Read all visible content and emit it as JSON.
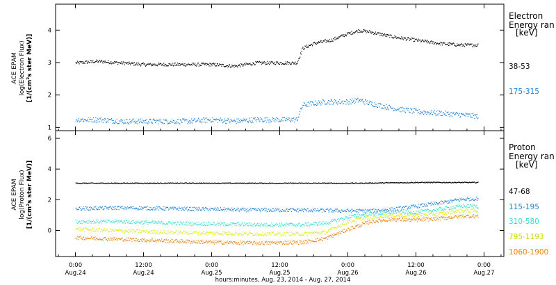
{
  "chart_data": [
    {
      "type": "scatter",
      "panel": "electron",
      "ylabel_lines": [
        "ACE EPAM",
        "log(Electron Flux)",
        "[1/(cm²s ster MeV)]"
      ],
      "ylim": [
        0.9,
        4.8
      ],
      "yticks": [
        1,
        2,
        3,
        4
      ],
      "legend_title": [
        "Electron",
        "Energy ran",
        "[keV]"
      ],
      "series": [
        {
          "name": "38-53",
          "color": "#000000",
          "points": [
            [
              0,
              3.0
            ],
            [
              4,
              3.05
            ],
            [
              8,
              3.0
            ],
            [
              12,
              2.95
            ],
            [
              16,
              2.95
            ],
            [
              20,
              2.95
            ],
            [
              24,
              2.95
            ],
            [
              28,
              2.9
            ],
            [
              32,
              3.0
            ],
            [
              36,
              3.0
            ],
            [
              39,
              3.0
            ],
            [
              40,
              3.45
            ],
            [
              42,
              3.6
            ],
            [
              45,
              3.7
            ],
            [
              48,
              3.9
            ],
            [
              50,
              4.0
            ],
            [
              52,
              3.95
            ],
            [
              56,
              3.8
            ],
            [
              60,
              3.7
            ],
            [
              64,
              3.6
            ],
            [
              68,
              3.55
            ],
            [
              71,
              3.55
            ]
          ]
        },
        {
          "name": "175-315",
          "color": "#1a7fd4",
          "points": [
            [
              0,
              1.25
            ],
            [
              4,
              1.25
            ],
            [
              8,
              1.2
            ],
            [
              12,
              1.2
            ],
            [
              16,
              1.2
            ],
            [
              20,
              1.2
            ],
            [
              24,
              1.25
            ],
            [
              28,
              1.2
            ],
            [
              32,
              1.25
            ],
            [
              36,
              1.25
            ],
            [
              39,
              1.25
            ],
            [
              40,
              1.7
            ],
            [
              44,
              1.8
            ],
            [
              48,
              1.8
            ],
            [
              50,
              1.85
            ],
            [
              52,
              1.75
            ],
            [
              56,
              1.6
            ],
            [
              60,
              1.5
            ],
            [
              64,
              1.45
            ],
            [
              68,
              1.4
            ],
            [
              71,
              1.35
            ]
          ]
        }
      ]
    },
    {
      "type": "scatter",
      "panel": "proton",
      "ylabel_lines": [
        "ACE EPAM",
        "log(Proton Flux)",
        "[1/(cm²s ster MeV)]"
      ],
      "ylim": [
        -1.7,
        6.5
      ],
      "yticks": [
        0,
        2,
        4,
        6
      ],
      "legend_title": [
        "Proton",
        "Energy ran",
        "[keV]"
      ],
      "series": [
        {
          "name": "47-68",
          "color": "#000000",
          "points": [
            [
              0,
              3.1
            ],
            [
              10,
              3.1
            ],
            [
              20,
              3.1
            ],
            [
              30,
              3.1
            ],
            [
              40,
              3.1
            ],
            [
              50,
              3.1
            ],
            [
              60,
              3.15
            ],
            [
              71,
              3.15
            ]
          ]
        },
        {
          "name": "115-195",
          "color": "#1a7fd4",
          "points": [
            [
              0,
              1.45
            ],
            [
              8,
              1.5
            ],
            [
              16,
              1.45
            ],
            [
              24,
              1.4
            ],
            [
              32,
              1.35
            ],
            [
              40,
              1.35
            ],
            [
              48,
              1.3
            ],
            [
              52,
              1.3
            ],
            [
              56,
              1.4
            ],
            [
              60,
              1.6
            ],
            [
              64,
              1.8
            ],
            [
              68,
              2.05
            ],
            [
              71,
              2.1
            ]
          ]
        },
        {
          "name": "310-580",
          "color": "#33ddd0",
          "points": [
            [
              0,
              0.6
            ],
            [
              8,
              0.6
            ],
            [
              16,
              0.5
            ],
            [
              24,
              0.45
            ],
            [
              32,
              0.4
            ],
            [
              40,
              0.4
            ],
            [
              44,
              0.5
            ],
            [
              48,
              0.9
            ],
            [
              52,
              1.1
            ],
            [
              56,
              1.2
            ],
            [
              60,
              1.2
            ],
            [
              64,
              1.4
            ],
            [
              68,
              1.6
            ],
            [
              71,
              1.6
            ]
          ]
        },
        {
          "name": "795-1193",
          "color": "#d8ea1a",
          "points": [
            [
              0,
              0.1
            ],
            [
              8,
              0.0
            ],
            [
              16,
              -0.1
            ],
            [
              24,
              -0.15
            ],
            [
              32,
              -0.2
            ],
            [
              40,
              -0.2
            ],
            [
              44,
              -0.1
            ],
            [
              48,
              0.6
            ],
            [
              52,
              0.9
            ],
            [
              56,
              1.0
            ],
            [
              60,
              1.0
            ],
            [
              64,
              1.1
            ],
            [
              68,
              1.3
            ],
            [
              71,
              1.3
            ]
          ]
        },
        {
          "name": "1060-1900",
          "color": "#e8820c",
          "points": [
            [
              0,
              -0.45
            ],
            [
              8,
              -0.55
            ],
            [
              16,
              -0.65
            ],
            [
              24,
              -0.75
            ],
            [
              32,
              -0.8
            ],
            [
              40,
              -0.75
            ],
            [
              44,
              -0.5
            ],
            [
              48,
              0.1
            ],
            [
              52,
              0.6
            ],
            [
              56,
              0.75
            ],
            [
              60,
              0.7
            ],
            [
              64,
              0.8
            ],
            [
              68,
              0.95
            ],
            [
              71,
              0.95
            ]
          ]
        }
      ]
    }
  ],
  "xaxis": {
    "range_hours": [
      -3.5,
      75.5
    ],
    "tick_hours": [
      0,
      12,
      24,
      36,
      48,
      60,
      72
    ],
    "tick_labels": [
      [
        "0:00",
        "Aug.24"
      ],
      [
        "12:00",
        "Aug.24"
      ],
      [
        "0:00",
        "Aug.25"
      ],
      [
        "12:00",
        "Aug.25"
      ],
      [
        "0:00",
        "Aug.26"
      ],
      [
        "12:00",
        "Aug.26"
      ],
      [
        "0:00",
        "Aug.27"
      ]
    ],
    "xlabel": "hours:minutes, Aug. 23, 2014 - Aug. 27, 2014"
  }
}
